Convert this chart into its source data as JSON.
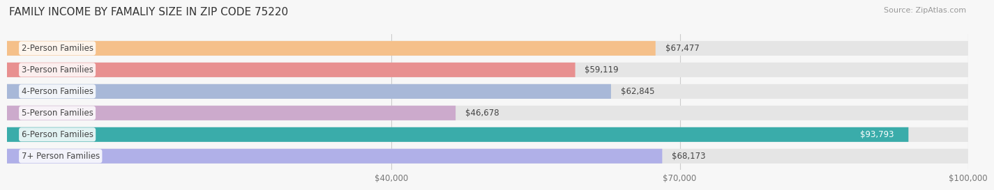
{
  "title": "FAMILY INCOME BY FAMALIY SIZE IN ZIP CODE 75220",
  "source": "Source: ZipAtlas.com",
  "categories": [
    "2-Person Families",
    "3-Person Families",
    "4-Person Families",
    "5-Person Families",
    "6-Person Families",
    "7+ Person Families"
  ],
  "values": [
    67477,
    59119,
    62845,
    46678,
    93793,
    68173
  ],
  "bar_colors": [
    "#f5c08a",
    "#e89090",
    "#a8b8d8",
    "#ccaacc",
    "#3aacaa",
    "#b0b0e8"
  ],
  "xlim_max": 100000,
  "xticks": [
    40000,
    70000,
    100000
  ],
  "xtick_labels": [
    "$40,000",
    "$70,000",
    "$100,000"
  ],
  "background_color": "#f7f7f7",
  "bar_bg_color": "#e5e5e5",
  "title_fontsize": 11,
  "source_fontsize": 8,
  "label_fontsize": 8.5,
  "tick_fontsize": 8.5,
  "value_label_inside_idx": 4,
  "value_label_inside_color": "#ffffff"
}
